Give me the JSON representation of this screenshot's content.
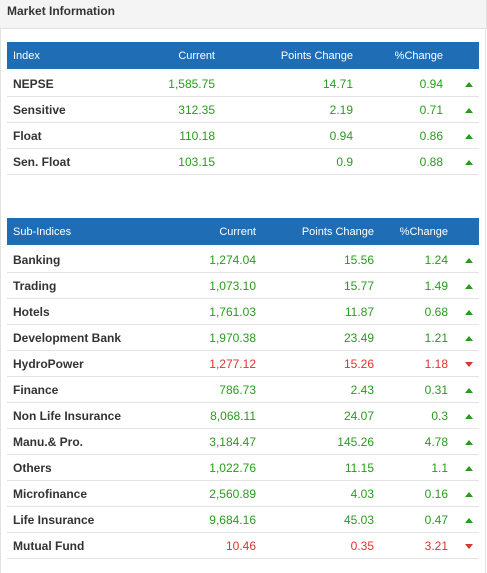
{
  "header": {
    "title": "Market Information"
  },
  "index_table": {
    "columns": [
      "Index",
      "Current",
      "Points Change",
      "%Change"
    ],
    "rows": [
      {
        "name": "NEPSE",
        "current": "1,585.75",
        "points": "14.71",
        "pct": "0.94",
        "dir": "up"
      },
      {
        "name": "Sensitive",
        "current": "312.35",
        "points": "2.19",
        "pct": "0.71",
        "dir": "up"
      },
      {
        "name": "Float",
        "current": "110.18",
        "points": "0.94",
        "pct": "0.86",
        "dir": "up"
      },
      {
        "name": "Sen. Float",
        "current": "103.15",
        "points": "0.9",
        "pct": "0.88",
        "dir": "up"
      }
    ]
  },
  "subindex_table": {
    "columns": [
      "Sub-Indices",
      "Current",
      "Points Change",
      "%Change"
    ],
    "rows": [
      {
        "name": "Banking",
        "current": "1,274.04",
        "points": "15.56",
        "pct": "1.24",
        "dir": "up"
      },
      {
        "name": "Trading",
        "current": "1,073.10",
        "points": "15.77",
        "pct": "1.49",
        "dir": "up"
      },
      {
        "name": "Hotels",
        "current": "1,761.03",
        "points": "11.87",
        "pct": "0.68",
        "dir": "up"
      },
      {
        "name": "Development Bank",
        "current": "1,970.38",
        "points": "23.49",
        "pct": "1.21",
        "dir": "up"
      },
      {
        "name": "HydroPower",
        "current": "1,277.12",
        "points": "15.26",
        "pct": "1.18",
        "dir": "down"
      },
      {
        "name": "Finance",
        "current": "786.73",
        "points": "2.43",
        "pct": "0.31",
        "dir": "up"
      },
      {
        "name": "Non Life Insurance",
        "current": "8,068.11",
        "points": "24.07",
        "pct": "0.3",
        "dir": "up"
      },
      {
        "name": "Manu.& Pro.",
        "current": "3,184.47",
        "points": "145.26",
        "pct": "4.78",
        "dir": "up"
      },
      {
        "name": "Others",
        "current": "1,022.76",
        "points": "11.15",
        "pct": "1.1",
        "dir": "up"
      },
      {
        "name": "Microfinance",
        "current": "2,560.89",
        "points": "4.03",
        "pct": "0.16",
        "dir": "up"
      },
      {
        "name": "Life Insurance",
        "current": "9,684.16",
        "points": "45.03",
        "pct": "0.47",
        "dir": "up"
      },
      {
        "name": "Mutual Fund",
        "current": "10.46",
        "points": "0.35",
        "pct": "3.21",
        "dir": "down"
      }
    ]
  },
  "icons": {
    "up": "triangle-up-icon",
    "down": "triangle-down-icon"
  },
  "colors": {
    "header_bg": "#1f6db5",
    "up": "#2a9a1f",
    "down": "#e03232"
  }
}
